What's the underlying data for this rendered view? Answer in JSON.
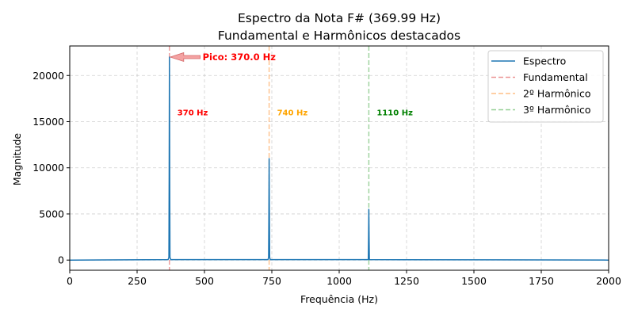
{
  "chart_data": {
    "type": "line",
    "title": "Espectro da Nota F# (369.99 Hz)",
    "subtitle": "Fundamental e Harmônicos destacados",
    "xlabel": "Frequência (Hz)",
    "ylabel": "Magnitude",
    "xlim": [
      0,
      2000
    ],
    "ylim": [
      -1100,
      23200
    ],
    "xticks": [
      0,
      250,
      500,
      750,
      1000,
      1250,
      1500,
      1750,
      2000
    ],
    "yticks": [
      0,
      5000,
      10000,
      15000,
      20000
    ],
    "grid": true,
    "legend_position": "top-right",
    "series": [
      {
        "name": "Espectro",
        "color": "#1f77b4",
        "x": [
          0,
          365,
          368,
          369,
          370,
          371,
          372,
          375,
          736,
          738,
          739,
          740,
          741,
          742,
          744,
          1108,
          1109,
          1110,
          1111,
          1112,
          2000
        ],
        "y": [
          0,
          50,
          300,
          9000,
          22000,
          9000,
          300,
          50,
          50,
          300,
          5000,
          11000,
          5000,
          300,
          50,
          50,
          2500,
          5500,
          2500,
          50,
          0
        ]
      }
    ],
    "reference_lines": [
      {
        "name": "Fundamental",
        "x": 370,
        "color": "#d62728",
        "label": "370 Hz",
        "label_y": 16000
      },
      {
        "name": "2º Harmônico",
        "x": 740,
        "color": "#ff7f0e",
        "label": "740 Hz",
        "label_y": 16000
      },
      {
        "name": "3º Harmônico",
        "x": 1110,
        "color": "#2ca02c",
        "label": "1110 Hz",
        "label_y": 16000
      }
    ],
    "annotation": {
      "text": "Pico: 370.0 Hz",
      "xy": [
        370,
        22000
      ],
      "text_xy": [
        490,
        22000
      ],
      "color": "#ff0000"
    }
  },
  "colors": {
    "label_red": "#ff0000",
    "label_orange": "#ffa500",
    "label_green": "#008000",
    "arrow_fill": "#f4a3a3",
    "arrow_edge": "#d46a6a"
  }
}
